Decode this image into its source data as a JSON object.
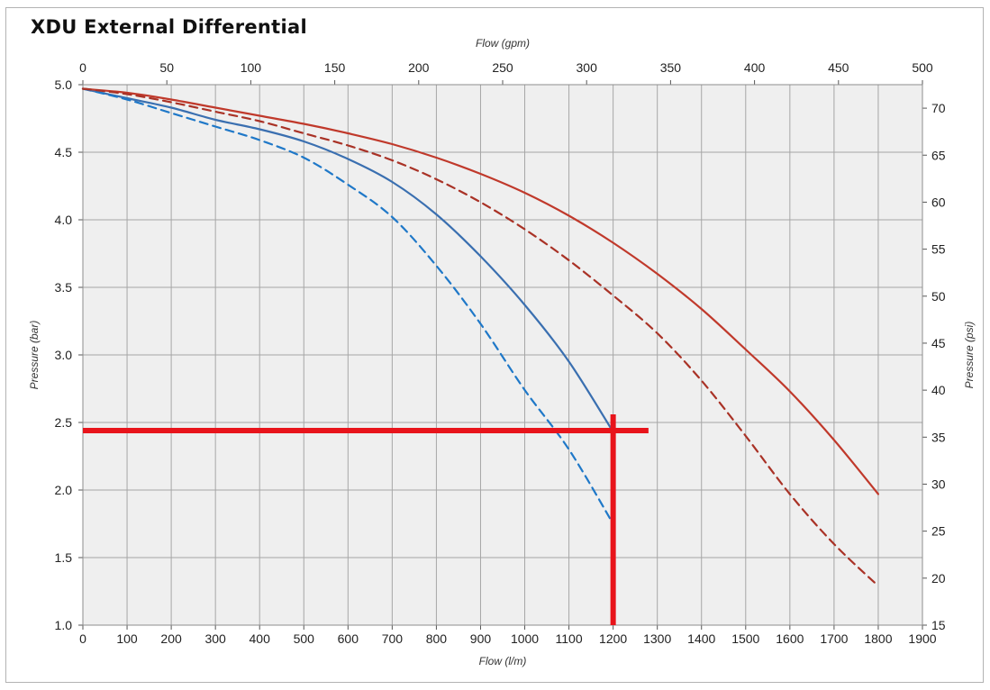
{
  "chart_data": {
    "type": "line",
    "title": "XDU External Differential",
    "xlabel": "Flow (l/m)",
    "x2label": "Flow (gpm)",
    "ylabel": "Pressure (bar)",
    "y2label": "Pressure (psi)",
    "xlim": [
      0,
      1900
    ],
    "x2lim": [
      0,
      500
    ],
    "ylim": [
      1.0,
      5.0
    ],
    "y2lim": [
      15,
      72.5
    ],
    "x_ticks": [
      "0",
      "100",
      "200",
      "300",
      "400",
      "500",
      "600",
      "700",
      "800",
      "900",
      "1000",
      "1100",
      "1200",
      "1300",
      "1400",
      "1500",
      "1600",
      "1700",
      "1800",
      "1900"
    ],
    "x2_ticks": [
      "0",
      "50",
      "100",
      "150",
      "200",
      "250",
      "300",
      "350",
      "400",
      "450",
      "500"
    ],
    "y_ticks": [
      "1.0",
      "1.5",
      "2.0",
      "2.5",
      "3.0",
      "3.5",
      "4.0",
      "4.5",
      "5.0"
    ],
    "y2_ticks": [
      "15",
      "20",
      "25",
      "30",
      "35",
      "40",
      "45",
      "50",
      "55",
      "60",
      "65",
      "70"
    ],
    "grid": true,
    "colors": {
      "plot_bg": "#efefef",
      "grid": "#a6a6a6",
      "blue": "#3a6fb0",
      "blue_dashed": "#1f78c8",
      "red": "#c0392b",
      "red_dashed": "#a93226",
      "marker": "#e8141b"
    },
    "series": [
      {
        "style": "solid",
        "color": "blue",
        "x": [
          0,
          100,
          200,
          300,
          400,
          500,
          600,
          700,
          800,
          900,
          1000,
          1100,
          1200
        ],
        "y": [
          4.97,
          4.9,
          4.83,
          4.74,
          4.67,
          4.58,
          4.45,
          4.28,
          4.04,
          3.73,
          3.37,
          2.95,
          2.43
        ]
      },
      {
        "style": "dashed",
        "color": "blue_dashed",
        "x": [
          0,
          100,
          200,
          300,
          400,
          500,
          600,
          700,
          800,
          900,
          1000,
          1100,
          1200
        ],
        "y": [
          4.97,
          4.89,
          4.79,
          4.69,
          4.59,
          4.46,
          4.26,
          4.02,
          3.66,
          3.23,
          2.74,
          2.3,
          1.75
        ]
      },
      {
        "style": "solid",
        "color": "red",
        "x": [
          0,
          100,
          200,
          300,
          400,
          500,
          600,
          700,
          800,
          900,
          1000,
          1100,
          1200,
          1300,
          1400,
          1500,
          1600,
          1700,
          1800
        ],
        "y": [
          4.97,
          4.94,
          4.89,
          4.83,
          4.77,
          4.71,
          4.64,
          4.56,
          4.46,
          4.34,
          4.2,
          4.03,
          3.83,
          3.6,
          3.34,
          3.04,
          2.73,
          2.37,
          1.97
        ]
      },
      {
        "style": "dashed",
        "color": "red_dashed",
        "x": [
          0,
          100,
          200,
          300,
          400,
          500,
          600,
          700,
          800,
          900,
          1000,
          1100,
          1200,
          1300,
          1400,
          1500,
          1600,
          1700,
          1800
        ],
        "y": [
          4.97,
          4.93,
          4.87,
          4.8,
          4.73,
          4.64,
          4.55,
          4.44,
          4.3,
          4.13,
          3.93,
          3.7,
          3.44,
          3.16,
          2.81,
          2.4,
          1.97,
          1.6,
          1.29
        ]
      }
    ],
    "annotations": {
      "operating_point": {
        "x": 1200,
        "y": 2.44
      }
    }
  }
}
